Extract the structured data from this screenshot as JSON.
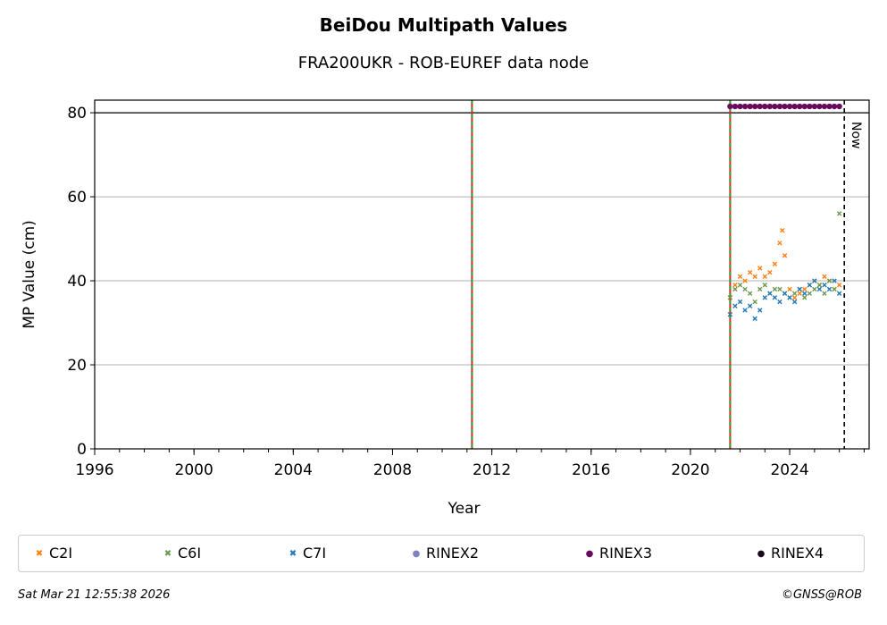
{
  "chart_data": {
    "type": "scatter",
    "title": "BeiDou Multipath Values",
    "subtitle": "FRA200UKR - ROB-EUREF data node",
    "xlabel": "Year",
    "ylabel": "MP Value (cm)",
    "xlim": [
      1996,
      2027.2
    ],
    "ylim": [
      0,
      83
    ],
    "x_ticks": [
      "1996",
      "2000",
      "2004",
      "2008",
      "2012",
      "2016",
      "2020",
      "2024"
    ],
    "y_ticks": [
      "0",
      "20",
      "40",
      "60",
      "80"
    ],
    "grid": "horizontal",
    "now_label": "Now",
    "now_x": 2026.2,
    "vertical_markers": [
      2011.2,
      2021.6
    ],
    "legend_position": "bottom",
    "series": [
      {
        "name": "C2I",
        "color": "#ff7f0e",
        "marker": "x",
        "x": [
          2021.6,
          2021.8,
          2022.0,
          2022.2,
          2022.4,
          2022.6,
          2022.8,
          2023.0,
          2023.2,
          2023.4,
          2023.6,
          2023.7,
          2023.8,
          2024.0,
          2024.2,
          2024.4,
          2024.6,
          2024.8,
          2025.0,
          2025.2,
          2025.4,
          2025.6,
          2025.8,
          2026.0
        ],
        "y": [
          36,
          39,
          41,
          40,
          42,
          41,
          43,
          41,
          42,
          44,
          49,
          52,
          46,
          38,
          36,
          37,
          38,
          39,
          40,
          39,
          41,
          40,
          38,
          39
        ]
      },
      {
        "name": "C6I",
        "color": "#6a994e",
        "marker": "x",
        "x": [
          2021.6,
          2021.8,
          2022.0,
          2022.2,
          2022.4,
          2022.6,
          2022.8,
          2023.0,
          2023.2,
          2023.4,
          2023.6,
          2023.8,
          2024.0,
          2024.2,
          2024.4,
          2024.6,
          2024.8,
          2025.0,
          2025.2,
          2025.4,
          2025.6,
          2025.8,
          2026.0
        ],
        "y": [
          36,
          38,
          39,
          38,
          37,
          35,
          38,
          39,
          37,
          38,
          38,
          37,
          36,
          37,
          38,
          36,
          37,
          38,
          39,
          37,
          40,
          38,
          56
        ]
      },
      {
        "name": "C7I",
        "color": "#1f77b4",
        "marker": "x",
        "x": [
          2021.6,
          2021.8,
          2022.0,
          2022.2,
          2022.4,
          2022.6,
          2022.8,
          2023.0,
          2023.2,
          2023.4,
          2023.6,
          2023.8,
          2024.0,
          2024.2,
          2024.4,
          2024.6,
          2024.8,
          2025.0,
          2025.2,
          2025.4,
          2025.6,
          2025.8,
          2026.0
        ],
        "y": [
          32,
          34,
          35,
          33,
          34,
          31,
          33,
          36,
          37,
          36,
          35,
          37,
          36,
          35,
          38,
          37,
          39,
          40,
          38,
          39,
          38,
          40,
          37
        ]
      },
      {
        "name": "RINEX2",
        "color": "#8080c0",
        "marker": "o",
        "x": [],
        "y": []
      },
      {
        "name": "RINEX3",
        "color": "#6a0a5c",
        "marker": "o",
        "x": [
          2021.6,
          2021.8,
          2022.0,
          2022.2,
          2022.4,
          2022.6,
          2022.8,
          2023.0,
          2023.2,
          2023.4,
          2023.6,
          2023.8,
          2024.0,
          2024.2,
          2024.4,
          2024.6,
          2024.8,
          2025.0,
          2025.2,
          2025.4,
          2025.6,
          2025.8,
          2026.0
        ],
        "y": [
          81.5,
          81.5,
          81.5,
          81.5,
          81.5,
          81.5,
          81.5,
          81.5,
          81.5,
          81.5,
          81.5,
          81.5,
          81.5,
          81.5,
          81.5,
          81.5,
          81.5,
          81.5,
          81.5,
          81.5,
          81.5,
          81.5,
          81.5
        ]
      },
      {
        "name": "RINEX4",
        "color": "#1a0a1a",
        "marker": "o",
        "x": [],
        "y": []
      }
    ]
  },
  "footer": {
    "timestamp": "Sat Mar 21 12:55:38 2026",
    "copyright": "©GNSS@ROB"
  }
}
